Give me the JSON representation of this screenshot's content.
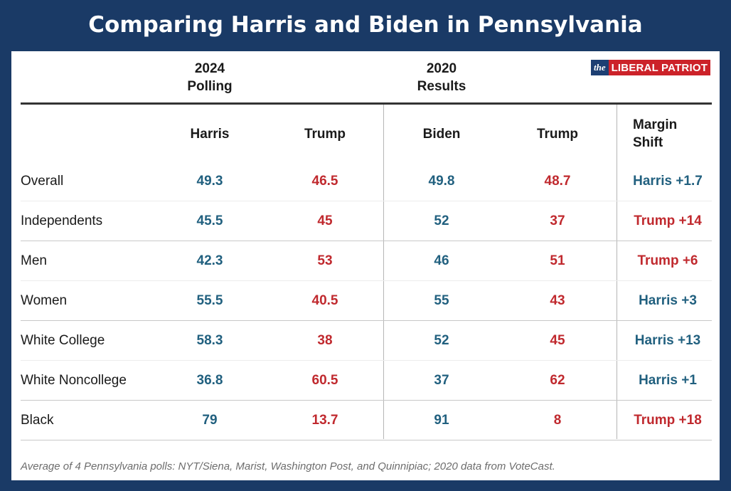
{
  "title": "Comparing Harris and Biden in Pennsylvania",
  "logo": {
    "prefix": "the",
    "name": "LIBERAL PATRIOT"
  },
  "groups": {
    "polling": {
      "line1": "2024",
      "line2": "Polling"
    },
    "results": {
      "line1": "2020",
      "line2": "Results"
    }
  },
  "columns": {
    "harris": "Harris",
    "trump_2024": "Trump",
    "biden": "Biden",
    "trump_2020": "Trump",
    "margin_line1": "Margin",
    "margin_line2": "Shift"
  },
  "chart_data": {
    "type": "table",
    "columns": [
      "Harris",
      "Trump",
      "Biden",
      "Trump",
      "Margin Shift"
    ],
    "rows": [
      {
        "group": "Overall",
        "harris": "49.3",
        "trump_2024": "46.5",
        "biden": "49.8",
        "trump_2020": "48.7",
        "margin_shift": "Harris +1.7",
        "shift_party": "harris"
      },
      {
        "group": "Independents",
        "harris": "45.5",
        "trump_2024": "45",
        "biden": "52",
        "trump_2020": "37",
        "margin_shift": "Trump +14",
        "shift_party": "trump"
      },
      {
        "group": "Men",
        "harris": "42.3",
        "trump_2024": "53",
        "biden": "46",
        "trump_2020": "51",
        "margin_shift": "Trump +6",
        "shift_party": "trump"
      },
      {
        "group": "Women",
        "harris": "55.5",
        "trump_2024": "40.5",
        "biden": "55",
        "trump_2020": "43",
        "margin_shift": "Harris +3",
        "shift_party": "harris"
      },
      {
        "group": "White College",
        "harris": "58.3",
        "trump_2024": "38",
        "biden": "52",
        "trump_2020": "45",
        "margin_shift": "Harris +13",
        "shift_party": "harris"
      },
      {
        "group": "White Noncollege",
        "harris": "36.8",
        "trump_2024": "60.5",
        "biden": "37",
        "trump_2020": "62",
        "margin_shift": "Harris +1",
        "shift_party": "harris"
      },
      {
        "group": "Black",
        "harris": "79",
        "trump_2024": "13.7",
        "biden": "91",
        "trump_2020": "8",
        "margin_shift": "Trump +18",
        "shift_party": "trump"
      }
    ]
  },
  "colors": {
    "background": "#1a3a66",
    "democrat": "#21607f",
    "republican": "#c0292e",
    "logo_blue": "#1d3f73",
    "logo_red": "#cc2229"
  },
  "footnote": "Average of 4 Pennsylvania polls: NYT/Siena, Marist, Washington Post, and Quinnipiac; 2020 data from VoteCast."
}
